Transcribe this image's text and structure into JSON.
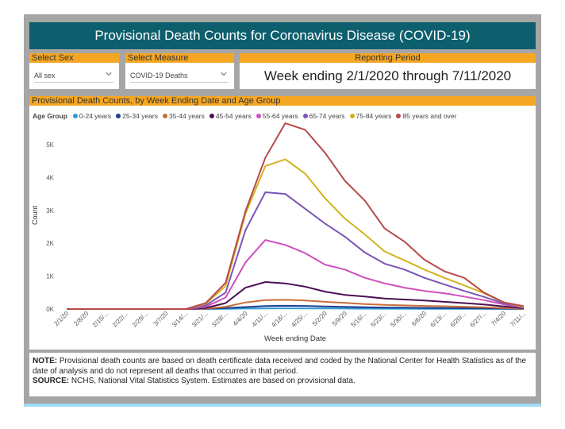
{
  "header": {
    "title": "Provisional Death Counts for Coronavirus Disease (COVID-19)"
  },
  "filters": {
    "sex": {
      "label": "Select Sex",
      "value": "All sex"
    },
    "measure": {
      "label": "Select Measure",
      "value": "COVID-19 Deaths"
    },
    "period": {
      "label": "Reporting Period",
      "value": "Week ending 2/1/2020 through 7/11/2020"
    }
  },
  "chart_panel": {
    "heading": "Provisional Death Counts, by Week Ending Date and Age Group"
  },
  "note": {
    "note_label": "NOTE:",
    "note_text": " Provisional death counts are based on death certificate data received and coded by the National Center for Health Statistics as of the date of analysis and do not represent all deaths that occurred in that period.",
    "source_label": "SOURCE:",
    "source_text": " NCHS, National Vital Statistics System. Estimates are based on provisional data."
  },
  "icons": {
    "dropdown": "chevron-down-icon"
  },
  "chart_data": {
    "type": "line",
    "title": "",
    "legend_title": "Age Group",
    "legend_position": "top-left",
    "xlabel": "Week ending Date",
    "ylabel": "Count",
    "ylim": [
      0,
      5700
    ],
    "y_ticks": [
      0,
      1000,
      2000,
      3000,
      4000,
      5000
    ],
    "y_tick_labels": [
      "0K",
      "1K",
      "2K",
      "3K",
      "4K",
      "5K"
    ],
    "grid": false,
    "x": [
      "2/1/20",
      "2/8/20",
      "2/15/20",
      "2/22/20",
      "2/29/20",
      "3/7/20",
      "3/14/20",
      "3/21/20",
      "3/28/20",
      "4/4/20",
      "4/11/20",
      "4/18/20",
      "4/25/20",
      "5/2/20",
      "5/9/20",
      "5/16/20",
      "5/23/20",
      "5/30/20",
      "6/6/20",
      "6/13/20",
      "6/20/20",
      "6/27/20",
      "7/4/20",
      "7/11/20"
    ],
    "x_tick_labels": [
      "2/1/20",
      "2/8/20",
      "2/15/...",
      "2/22/...",
      "2/29/...",
      "3/7/20",
      "3/14/...",
      "3/21/...",
      "3/28/...",
      "4/4/20",
      "4/11/...",
      "4/18/...",
      "4/25/...",
      "5/2/20",
      "5/9/20",
      "5/16/...",
      "5/23/...",
      "5/30/...",
      "6/6/20",
      "6/13/...",
      "6/20/...",
      "6/27/...",
      "7/4/20",
      "7/11/..."
    ],
    "series": [
      {
        "name": "0-24 years",
        "color": "#2f9bd6",
        "values": [
          0,
          0,
          0,
          0,
          0,
          0,
          0,
          3,
          8,
          15,
          20,
          22,
          20,
          18,
          15,
          12,
          10,
          9,
          8,
          7,
          6,
          5,
          3,
          1
        ]
      },
      {
        "name": "25-34 years",
        "color": "#1f3e8c",
        "values": [
          0,
          0,
          0,
          0,
          0,
          0,
          0,
          8,
          30,
          60,
          90,
          100,
          95,
          80,
          65,
          55,
          45,
          40,
          35,
          30,
          25,
          20,
          12,
          4
        ]
      },
      {
        "name": "35-44 years",
        "color": "#c8703a",
        "values": [
          0,
          0,
          0,
          0,
          0,
          0,
          0,
          15,
          70,
          200,
          270,
          280,
          260,
          220,
          185,
          150,
          125,
          110,
          95,
          85,
          70,
          55,
          30,
          10
        ]
      },
      {
        "name": "45-54 years",
        "color": "#4b0f55",
        "values": [
          0,
          0,
          0,
          0,
          0,
          0,
          0,
          35,
          180,
          650,
          820,
          780,
          680,
          530,
          430,
          380,
          320,
          290,
          260,
          220,
          180,
          140,
          80,
          25
        ]
      },
      {
        "name": "55-64 years",
        "color": "#cf4fbf",
        "values": [
          0,
          0,
          0,
          0,
          0,
          0,
          0,
          70,
          350,
          1420,
          2100,
          1950,
          1700,
          1350,
          1200,
          950,
          780,
          650,
          550,
          480,
          380,
          270,
          140,
          40
        ]
      },
      {
        "name": "65-74 years",
        "color": "#7a55b5",
        "values": [
          0,
          0,
          0,
          0,
          0,
          0,
          0,
          110,
          500,
          2400,
          3550,
          3500,
          3050,
          2600,
          2200,
          1720,
          1380,
          1200,
          950,
          750,
          550,
          370,
          170,
          60
        ]
      },
      {
        "name": "75-84 years",
        "color": "#d4b21e",
        "values": [
          0,
          0,
          0,
          0,
          0,
          0,
          0,
          160,
          700,
          2900,
          4350,
          4550,
          4120,
          3370,
          2750,
          2270,
          1750,
          1480,
          1200,
          950,
          720,
          480,
          200,
          70
        ]
      },
      {
        "name": "85 years and over",
        "color": "#b84a4a",
        "values": [
          0,
          0,
          0,
          0,
          0,
          0,
          0,
          180,
          800,
          2980,
          4600,
          5650,
          5450,
          4750,
          3900,
          3300,
          2450,
          2050,
          1500,
          1150,
          950,
          500,
          200,
          90
        ]
      }
    ]
  }
}
